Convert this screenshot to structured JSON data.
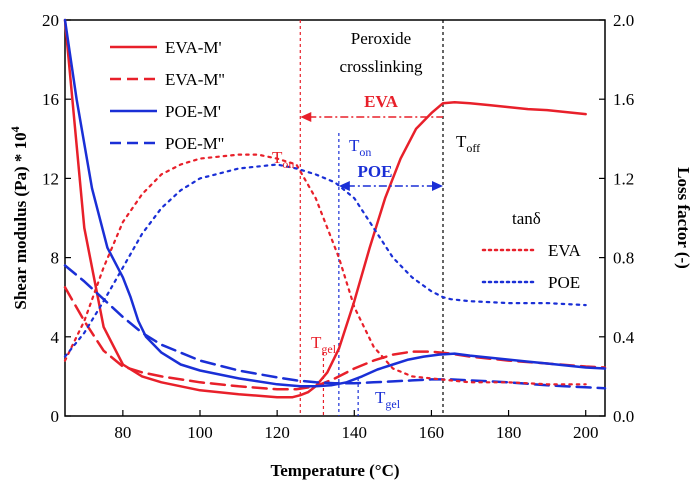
{
  "chart_data": {
    "type": "line",
    "title": "",
    "xlabel": "Temperature (°C)",
    "ylabel_left": "Shear modulus (Pa) * 10",
    "ylabel_left_exp": "4",
    "ylabel_right": "Loss factor (-)",
    "xlim": [
      65,
      205
    ],
    "ylim_left": [
      0,
      20
    ],
    "ylim_right": [
      0.0,
      2.0
    ],
    "x_ticks": [
      80,
      100,
      120,
      140,
      160,
      180,
      200
    ],
    "y_left_ticks": [
      0,
      4,
      8,
      12,
      16,
      20
    ],
    "y_right_ticks": [
      "0.0",
      "0.4",
      "0.8",
      "1.2",
      "1.6",
      "2.0"
    ],
    "grid": false,
    "colors": {
      "eva": "#e8202a",
      "poe": "#1a2fd6",
      "black": "#000000"
    },
    "legend_main": {
      "placement": "top-left",
      "entries": [
        {
          "label": "EVA-M'",
          "color": "#e8202a",
          "dash": "solid"
        },
        {
          "label": "EVA-M''",
          "color": "#e8202a",
          "dash": "dashed"
        },
        {
          "label": "POE-M'",
          "color": "#1a2fd6",
          "dash": "solid"
        },
        {
          "label": "POE-M''",
          "color": "#1a2fd6",
          "dash": "dashed"
        }
      ]
    },
    "legend_tan": {
      "placement": "right",
      "title": "tanδ",
      "entries": [
        {
          "label": "EVA",
          "color": "#e8202a",
          "dash": "dotted"
        },
        {
          "label": "POE",
          "color": "#1a2fd6",
          "dash": "dotted"
        }
      ]
    },
    "series": [
      {
        "name": "EVA-M'",
        "axis": "left",
        "color": "#e8202a",
        "dash": "solid",
        "x": [
          65,
          70,
          75,
          80,
          85,
          90,
          100,
          110,
          120,
          124,
          126,
          128,
          130,
          133,
          136,
          140,
          144,
          148,
          152,
          156,
          160,
          163,
          166,
          170,
          175,
          180,
          185,
          190,
          195,
          200
        ],
        "y": [
          20.5,
          9.5,
          4.5,
          2.6,
          2.0,
          1.7,
          1.3,
          1.1,
          0.95,
          0.95,
          1.05,
          1.2,
          1.5,
          2.2,
          3.4,
          5.8,
          8.5,
          11.0,
          13.0,
          14.5,
          15.3,
          15.8,
          15.85,
          15.8,
          15.7,
          15.6,
          15.5,
          15.45,
          15.35,
          15.25
        ]
      },
      {
        "name": "EVA-M''",
        "axis": "left",
        "color": "#e8202a",
        "dash": "dashed",
        "x": [
          65,
          70,
          75,
          80,
          85,
          90,
          100,
          110,
          120,
          125,
          130,
          135,
          140,
          145,
          150,
          155,
          160,
          165,
          170,
          180,
          190,
          200,
          205
        ],
        "y": [
          6.5,
          4.8,
          3.3,
          2.5,
          2.2,
          2.0,
          1.7,
          1.5,
          1.35,
          1.35,
          1.5,
          1.9,
          2.4,
          2.8,
          3.1,
          3.25,
          3.25,
          3.15,
          3.0,
          2.8,
          2.65,
          2.5,
          2.45
        ]
      },
      {
        "name": "POE-M'",
        "axis": "left",
        "color": "#1a2fd6",
        "dash": "solid",
        "x": [
          65,
          68,
          72,
          76,
          80,
          82,
          84,
          86,
          90,
          95,
          100,
          110,
          120,
          126,
          130,
          134,
          138,
          142,
          146,
          150,
          154,
          158,
          162,
          166,
          170,
          175,
          180,
          185,
          190,
          195,
          200,
          205
        ],
        "y": [
          20.5,
          16.0,
          11.5,
          8.5,
          7.0,
          6.0,
          4.8,
          4.0,
          3.2,
          2.6,
          2.3,
          1.9,
          1.6,
          1.5,
          1.5,
          1.55,
          1.7,
          2.0,
          2.35,
          2.6,
          2.85,
          3.0,
          3.1,
          3.15,
          3.05,
          2.95,
          2.85,
          2.75,
          2.65,
          2.55,
          2.45,
          2.4
        ]
      },
      {
        "name": "POE-M''",
        "axis": "left",
        "color": "#1a2fd6",
        "dash": "dashed",
        "x": [
          65,
          70,
          75,
          80,
          85,
          90,
          100,
          110,
          120,
          125,
          130,
          135,
          140,
          145,
          150,
          155,
          160,
          165,
          170,
          180,
          190,
          200,
          205
        ],
        "y": [
          7.6,
          6.8,
          5.9,
          5.0,
          4.2,
          3.6,
          2.8,
          2.3,
          1.95,
          1.8,
          1.7,
          1.65,
          1.65,
          1.7,
          1.75,
          1.8,
          1.85,
          1.85,
          1.8,
          1.7,
          1.55,
          1.45,
          1.4
        ]
      },
      {
        "name": "tanδ EVA",
        "axis": "right",
        "color": "#e8202a",
        "dash": "dotted",
        "x": [
          65,
          70,
          75,
          80,
          85,
          90,
          95,
          100,
          105,
          110,
          115,
          120,
          125,
          130,
          133,
          136,
          140,
          145,
          150,
          155,
          160,
          165,
          170,
          180,
          190,
          200
        ],
        "y": [
          0.28,
          0.48,
          0.75,
          0.98,
          1.12,
          1.22,
          1.27,
          1.3,
          1.31,
          1.32,
          1.32,
          1.3,
          1.27,
          1.1,
          0.95,
          0.8,
          0.55,
          0.35,
          0.24,
          0.2,
          0.19,
          0.18,
          0.17,
          0.17,
          0.16,
          0.16
        ]
      },
      {
        "name": "tanδ POE",
        "axis": "right",
        "color": "#1a2fd6",
        "dash": "dotted",
        "x": [
          65,
          70,
          75,
          80,
          85,
          90,
          95,
          100,
          110,
          120,
          125,
          130,
          135,
          140,
          145,
          150,
          155,
          160,
          163,
          165,
          170,
          180,
          190,
          200
        ],
        "y": [
          0.3,
          0.42,
          0.58,
          0.75,
          0.92,
          1.05,
          1.14,
          1.2,
          1.25,
          1.27,
          1.25,
          1.22,
          1.18,
          1.1,
          0.95,
          0.8,
          0.7,
          0.63,
          0.6,
          0.59,
          0.58,
          0.57,
          0.57,
          0.56
        ]
      }
    ],
    "annotations": {
      "peroxide_line1": "Peroxide",
      "peroxide_line2": "crosslinking",
      "eva_label": "EVA",
      "poe_label": "POE",
      "ton_base": "T",
      "ton_sub": "on",
      "toff_base": "T",
      "toff_sub": "off",
      "tgel_base": "T",
      "tgel_sub": "gel",
      "eva_ton_x": 126,
      "eva_toff_x": 163,
      "poe_ton_x": 136,
      "poe_toff_x": 163,
      "eva_tgel_x": 132,
      "poe_tgel_x": 141
    }
  }
}
